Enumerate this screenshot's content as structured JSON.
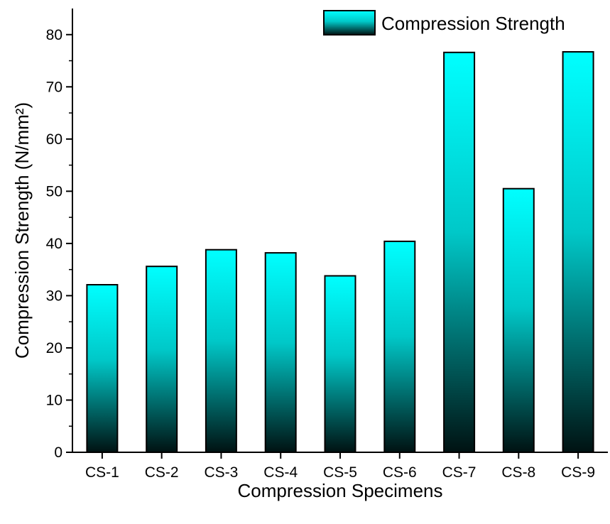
{
  "chart_data": {
    "type": "bar",
    "title": "",
    "xlabel": "Compression Specimens",
    "ylabel": "Compression Strength (N/mm²)",
    "categories": [
      "CS-1",
      "CS-2",
      "CS-3",
      "CS-4",
      "CS-5",
      "CS-6",
      "CS-7",
      "CS-8",
      "CS-9"
    ],
    "series": [
      {
        "name": "Compression Strength",
        "values": [
          32.1,
          35.6,
          38.8,
          38.2,
          33.8,
          40.4,
          76.6,
          50.5,
          76.7
        ]
      }
    ],
    "ylim": [
      0,
      85
    ],
    "yticks": [
      0,
      10,
      20,
      30,
      40,
      50,
      60,
      70,
      80
    ],
    "grid": false,
    "legend_position": "top-right",
    "colors": {
      "bar_top": "#00ffff",
      "bar_mid": "#00c8c8",
      "bar_bottom": "#001212",
      "bar_outline": "#000000",
      "axis": "#000000"
    }
  }
}
